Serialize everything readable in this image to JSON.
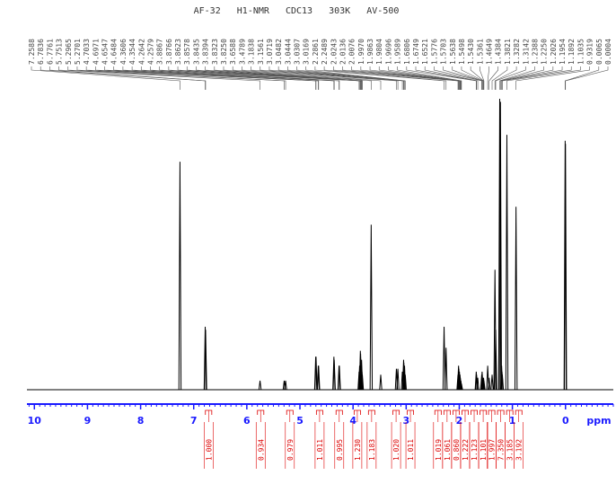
{
  "chart_data": {
    "type": "nmr",
    "title": "AF-32   H1-NMR   CDC13   303K   AV-500",
    "x_label": "ppm",
    "xlim": [
      10.14,
      -0.9
    ],
    "xticks": [
      10,
      9,
      8,
      7,
      6,
      5,
      4,
      3,
      2,
      1,
      0
    ],
    "ylim": [
      0,
      100
    ],
    "color": "#000000",
    "axis_color": "#1a1aff",
    "x": [
      7.2588,
      6.7836,
      6.7761,
      5.7513,
      5.2965,
      5.2701,
      4.7033,
      4.6971,
      4.6547,
      4.6484,
      4.3606,
      4.3544,
      4.2642,
      4.2579,
      3.8867,
      3.8766,
      3.8623,
      3.8578,
      3.8435,
      3.8394,
      3.8323,
      {
        "value": 3.825,
        "label": "3.8250"
      },
      3.6588,
      3.4789,
      3.1838,
      3.1561,
      3.0719,
      3.0482,
      3.0444,
      3.0307,
      3.0169,
      2.2861,
      2.2489,
      2.0243,
      2.0136,
      2.0076,
      {
        "value": 1.997,
        "label": "1.9970"
      },
      1.9863,
      1.9804,
      1.9696,
      1.9589,
      1.6806,
      1.6749,
      1.6521,
      1.5776,
      1.5703,
      1.5638,
      1.5498,
      {
        "value": 1.543,
        "label": "1.5430"
      },
      1.5361,
      1.4649,
      1.4384,
      1.3821,
      1.3282,
      1.3142,
      1.2388,
      {
        "value": 1.225,
        "label": "1.2250"
      },
      1.2026,
      1.1954,
      1.1892,
      1.1035,
      0.9319,
      0.0065,
      0.0004
    ],
    "values": [
      76,
      21,
      20,
      3,
      3,
      3,
      11,
      11,
      8,
      8,
      11,
      10,
      8,
      8,
      6,
      8,
      13,
      12,
      9,
      10,
      6,
      5,
      55,
      5,
      7,
      7,
      6,
      10,
      9,
      8,
      5,
      21,
      14,
      5,
      8,
      7,
      6,
      5,
      4,
      3,
      2,
      6,
      5,
      4,
      5,
      6,
      4,
      3,
      4,
      3,
      8,
      4,
      5,
      40,
      20,
      97,
      96,
      8,
      6,
      5,
      85,
      61,
      83,
      82
    ],
    "integrals": {
      "color": "#dd0000",
      "ranges": [
        [
          6.78,
          6.66
        ],
        [
          5.8,
          5.68
        ],
        [
          5.25,
          5.13
        ],
        [
          4.69,
          4.57
        ],
        [
          4.32,
          4.2
        ],
        [
          3.98,
          3.86
        ],
        [
          3.71,
          3.59
        ],
        [
          3.25,
          3.13
        ],
        [
          2.98,
          2.86
        ],
        [
          2.46,
          2.34
        ],
        [
          2.29,
          2.17
        ],
        [
          2.12,
          2.0
        ],
        [
          1.95,
          1.83
        ],
        [
          1.78,
          1.66
        ],
        [
          1.61,
          1.49
        ],
        [
          1.45,
          1.33
        ],
        [
          1.28,
          1.16
        ],
        [
          1.11,
          0.99
        ],
        [
          0.94,
          0.82
        ]
      ],
      "values": [
        1,
        0.934,
        0.979,
        1.011,
        0.995,
        1.23,
        1.183,
        1.02,
        1.011,
        1.019,
        1.061,
        0.86,
        1.222,
        1.123,
        1.101,
        1.997,
        7.35,
        3.185,
        3.192
      ],
      "value_labels": [
        "1.000",
        "0.934",
        "0.979",
        "1.011",
        "0.995",
        "1.230",
        "1.183",
        "1.020",
        "1.011",
        "1.019",
        "1.061",
        "0.860",
        "1.222",
        "1.123",
        "1.101",
        "1.997",
        "7.350",
        "3.185",
        "3.192"
      ]
    }
  }
}
